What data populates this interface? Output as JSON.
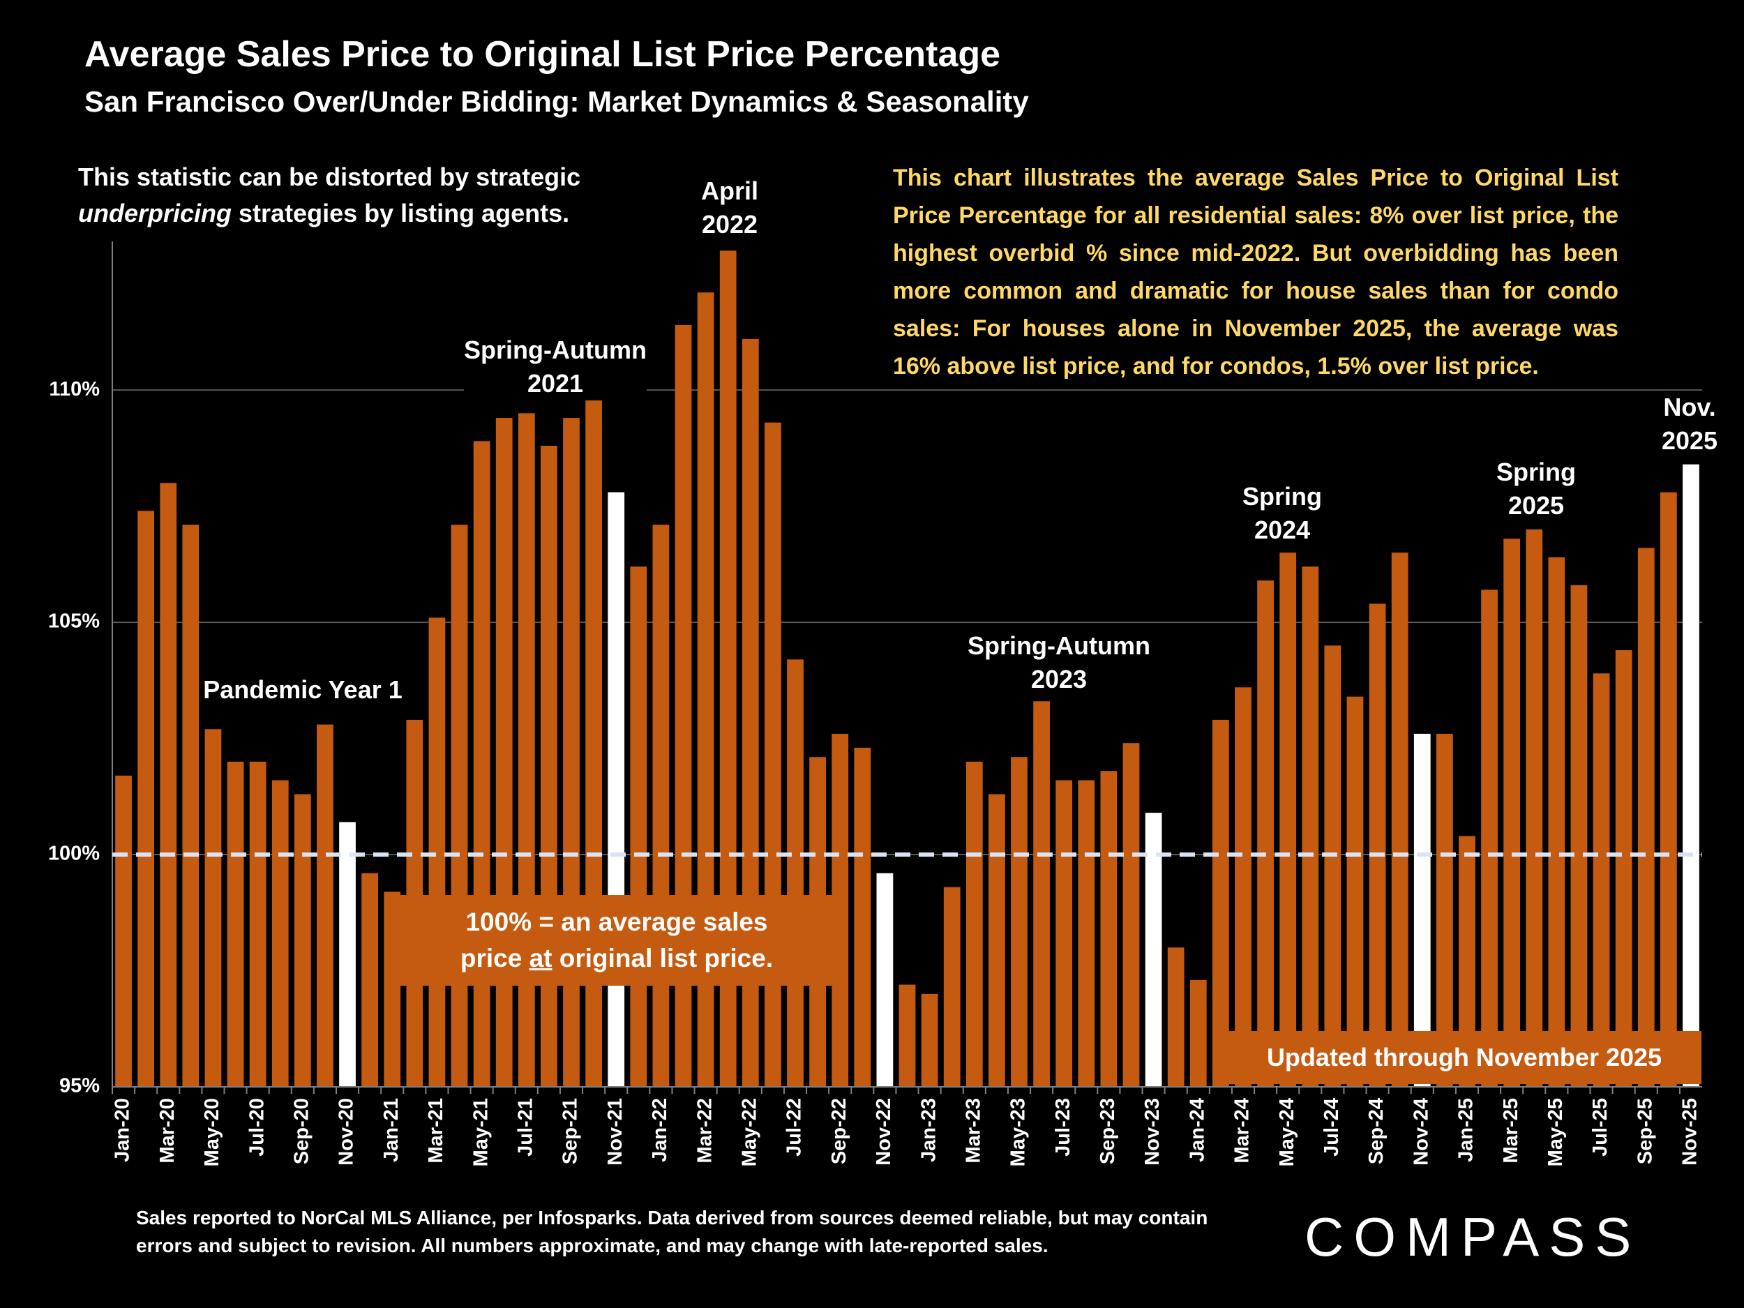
{
  "chart_data": {
    "type": "bar",
    "title": "Average Sales Price to Original List Price Percentage",
    "subtitle": "San Francisco Over/Under Bidding: Market Dynamics & Seasonality",
    "note_left": [
      "This statistic can be distorted by strategic",
      "underpricing",
      "strategies by listing agents."
    ],
    "note_right": "This chart illustrates the average Sales Price to Original List Price Percentage for all residential sales:  8% over list price, the highest overbid % since mid-2022. But overbidding has been more common and dramatic for house sales than for condo sales:  For houses alone in November 2025, the average was 16% above list price, and for condos, 1.5% over list price.",
    "period_labels": {
      "pandemic": "Pandemic Year 1",
      "spring_autumn_2021": "Spring-Autumn\n2021",
      "april_2022": "April\n2022",
      "spring_autumn_2023": "Spring-Autumn\n2023",
      "spring_2024": "Spring\n2024",
      "spring_2025": "Spring\n2025",
      "nov_2025": "Nov.\n2025"
    },
    "baseline_note": [
      "100% = an average sales",
      "price",
      "at",
      "original list price."
    ],
    "updated_note": "Updated through November 2025",
    "footnote": "Sales reported to NorCal MLS Alliance, per Infosparks. Data derived from sources deemed reliable, but may contain errors and subject to revision. All numbers approximate, and may change with late-reported sales.",
    "brand": "COMPASS",
    "categories": [
      "Jan-20",
      null,
      "Mar-20",
      null,
      "May-20",
      null,
      "Jul-20",
      null,
      "Sep-20",
      null,
      "Nov-20",
      null,
      "Jan-21",
      null,
      "Mar-21",
      null,
      "May-21",
      null,
      "Jul-21",
      null,
      "Sep-21",
      null,
      "Nov-21",
      null,
      "Jan-22",
      null,
      "Mar-22",
      null,
      "May-22",
      null,
      "Jul-22",
      null,
      "Sep-22",
      null,
      "Nov-22",
      null,
      "Jan-23",
      null,
      "Mar-23",
      null,
      "May-23",
      null,
      "Jul-23",
      null,
      "Sep-23",
      null,
      "Nov-23",
      null,
      "Jan-24",
      null,
      "Mar-24",
      null,
      "May-24",
      null,
      "Jul-24",
      null,
      "Sep-24",
      null,
      "Nov-24",
      null,
      "Jan-25",
      null,
      "Mar-25",
      null,
      "May-25",
      null,
      "Jul-25",
      null,
      "Sep-25",
      null,
      "Nov-25"
    ],
    "values": [
      101.7,
      107.4,
      108.0,
      107.1,
      102.7,
      102.0,
      102.0,
      101.6,
      101.3,
      102.8,
      100.7,
      99.6,
      99.2,
      102.9,
      105.1,
      107.1,
      108.9,
      109.4,
      109.5,
      108.8,
      109.4,
      110.0,
      107.8,
      106.2,
      107.1,
      111.4,
      112.1,
      113.0,
      111.1,
      109.3,
      104.2,
      102.1,
      102.6,
      102.3,
      99.6,
      97.2,
      97.0,
      99.3,
      102.0,
      101.3,
      102.1,
      103.3,
      101.6,
      101.6,
      101.8,
      102.4,
      100.9,
      98.0,
      97.3,
      102.9,
      103.6,
      105.9,
      106.5,
      106.2,
      104.5,
      103.4,
      105.4,
      106.5,
      102.6,
      102.6,
      100.4,
      105.7,
      106.8,
      107.0,
      106.4,
      105.8,
      103.9,
      104.4,
      106.6,
      107.8,
      108.4
    ],
    "colors": [
      "#c55a11",
      "#c55a11",
      "#c55a11",
      "#c55a11",
      "#c55a11",
      "#c55a11",
      "#c55a11",
      "#c55a11",
      "#c55a11",
      "#c55a11",
      "#ffffff",
      "#c55a11",
      "#c55a11",
      "#c55a11",
      "#c55a11",
      "#c55a11",
      "#c55a11",
      "#c55a11",
      "#c55a11",
      "#c55a11",
      "#c55a11",
      "#c55a11",
      "#ffffff",
      "#c55a11",
      "#c55a11",
      "#c55a11",
      "#c55a11",
      "#c55a11",
      "#c55a11",
      "#c55a11",
      "#c55a11",
      "#c55a11",
      "#c55a11",
      "#c55a11",
      "#ffffff",
      "#c55a11",
      "#c55a11",
      "#c55a11",
      "#c55a11",
      "#c55a11",
      "#c55a11",
      "#c55a11",
      "#c55a11",
      "#c55a11",
      "#c55a11",
      "#c55a11",
      "#ffffff",
      "#c55a11",
      "#c55a11",
      "#c55a11",
      "#c55a11",
      "#c55a11",
      "#c55a11",
      "#c55a11",
      "#c55a11",
      "#c55a11",
      "#c55a11",
      "#c55a11",
      "#ffffff",
      "#c55a11",
      "#c55a11",
      "#c55a11",
      "#c55a11",
      "#c55a11",
      "#c55a11",
      "#c55a11",
      "#c55a11",
      "#c55a11",
      "#c55a11",
      "#c55a11",
      "#ffffff"
    ],
    "ylim": [
      95,
      113.2
    ],
    "yticks": [
      {
        "value": 95,
        "label": "95%"
      },
      {
        "value": 100,
        "label": "100%"
      },
      {
        "value": 105,
        "label": "105%"
      },
      {
        "value": 110,
        "label": "110%"
      }
    ],
    "reference_line": 100,
    "grid": true
  }
}
